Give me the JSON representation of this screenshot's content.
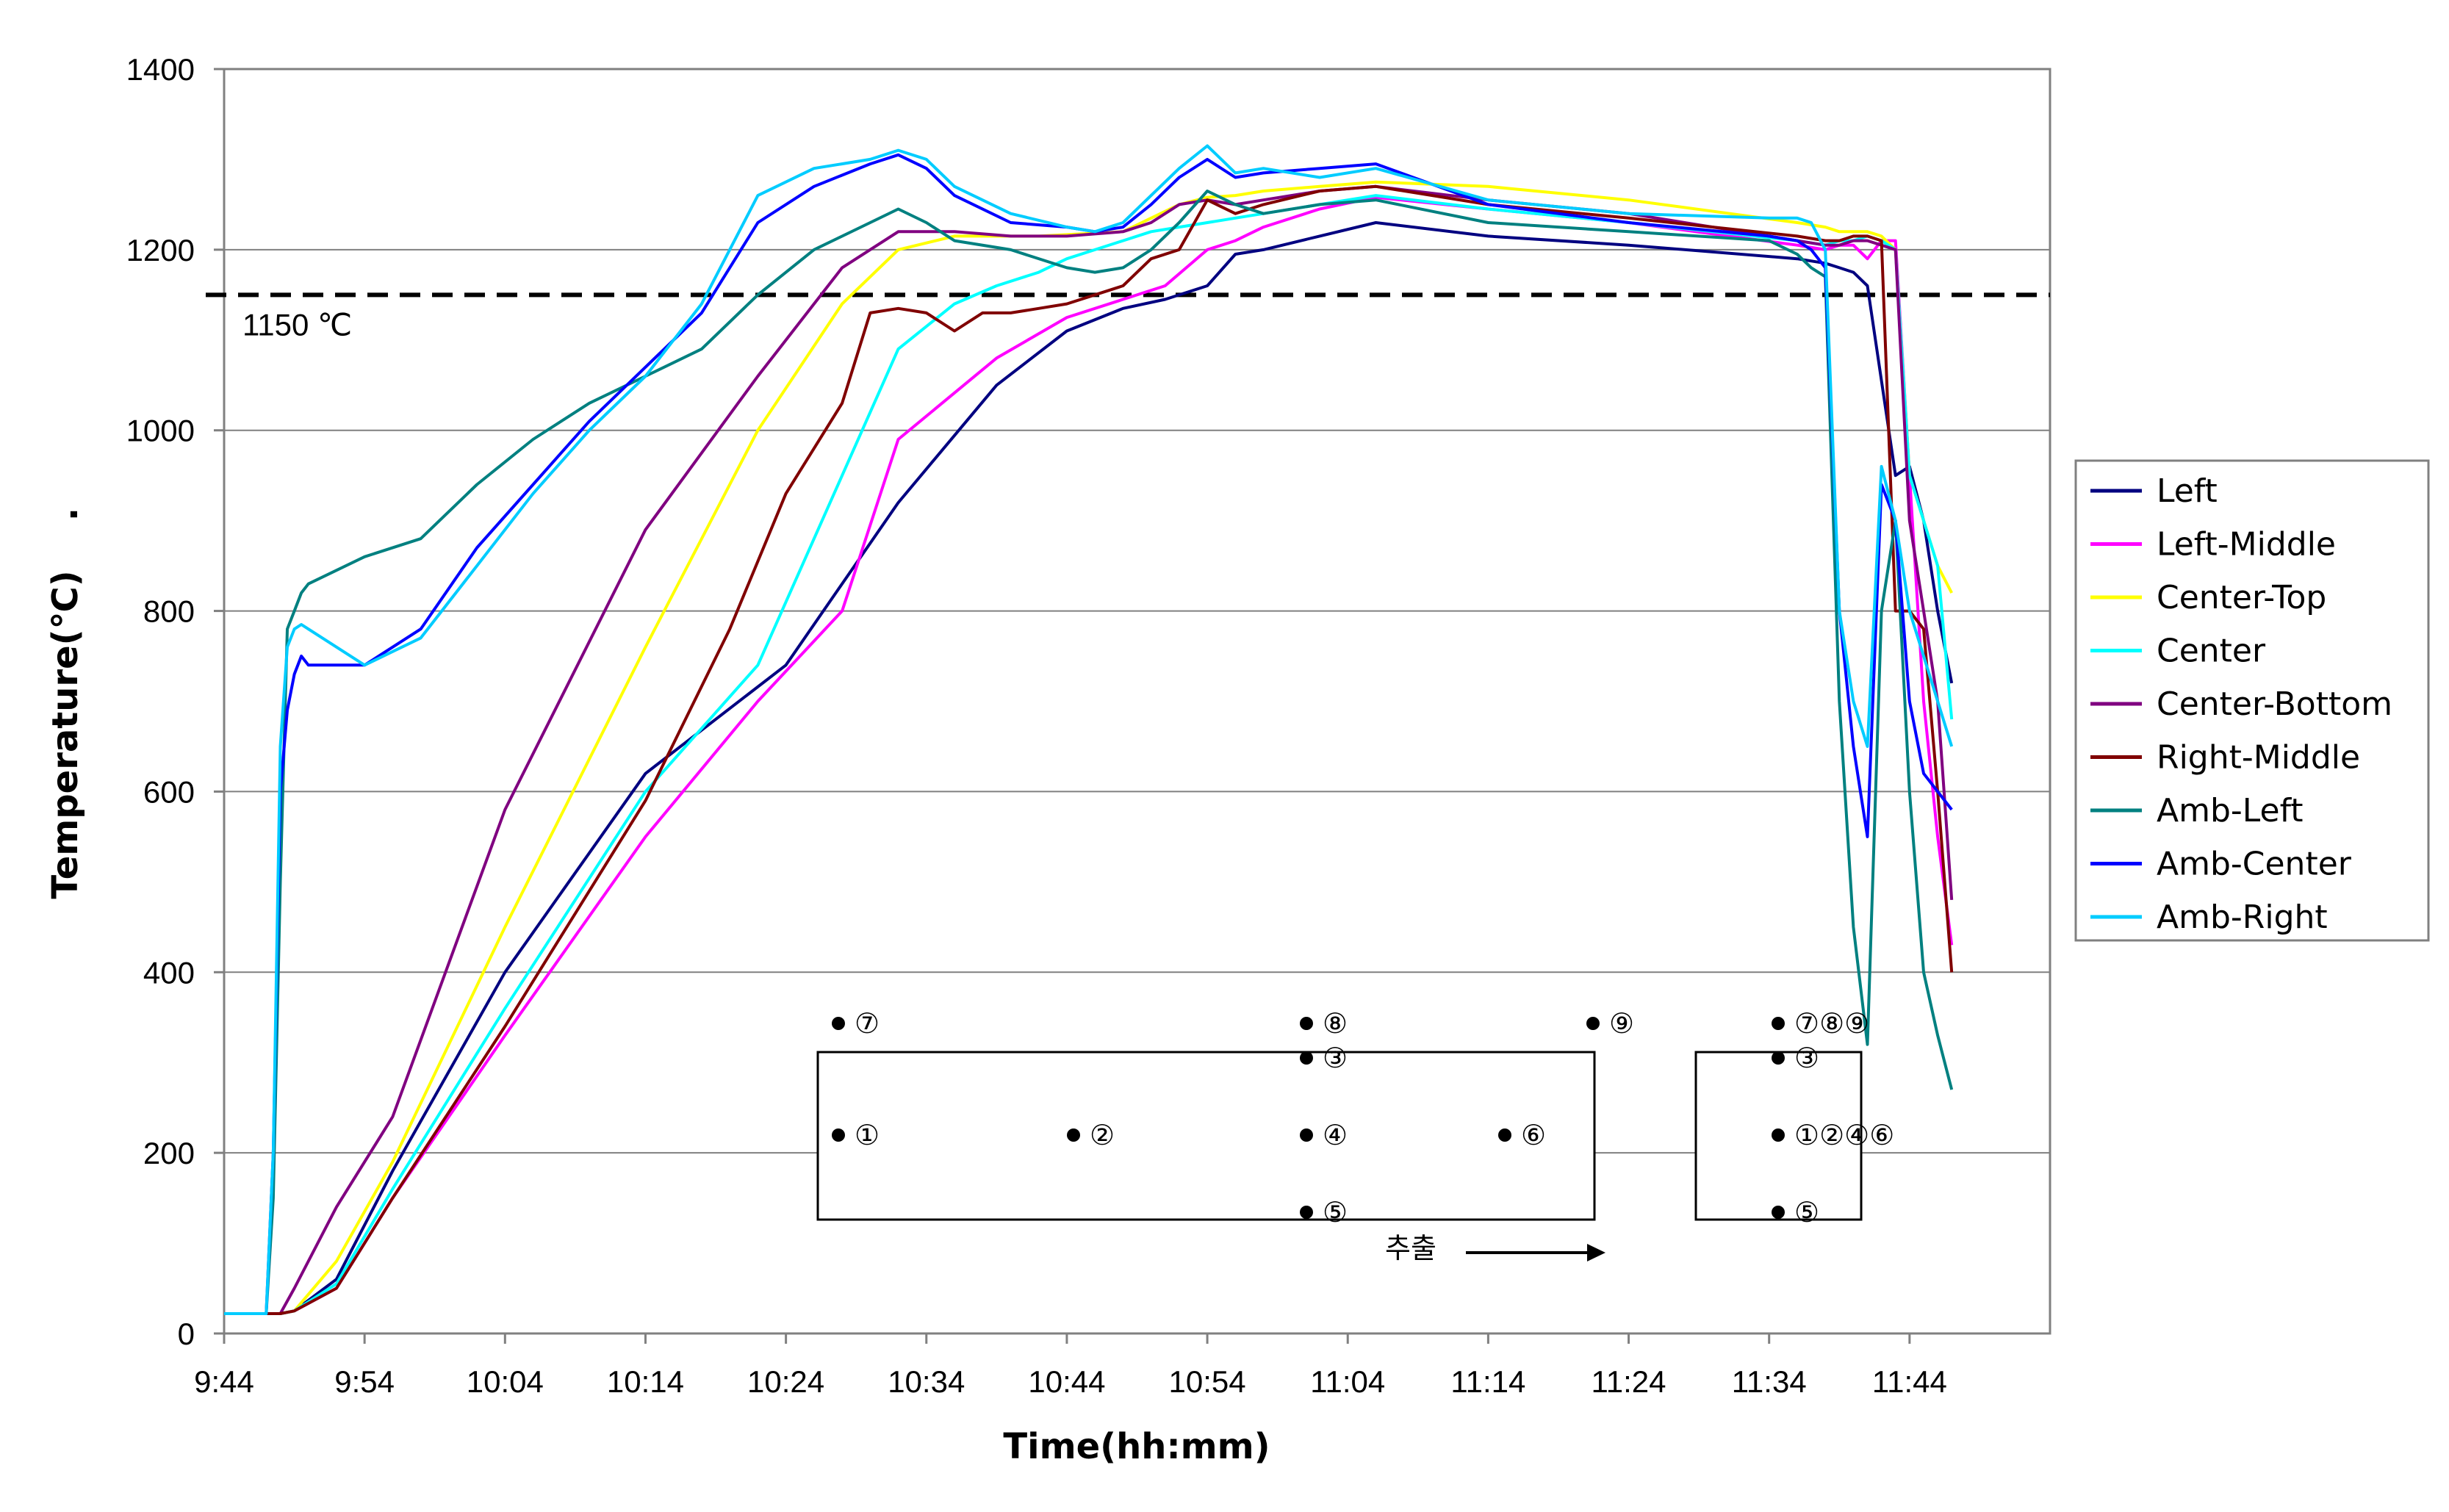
{
  "chart_data": {
    "type": "line",
    "xlabel": "Time(hh:mm)",
    "ylabel": "Temperature(℃)",
    "ylabel_suffix": ".",
    "ylim": [
      0,
      1400
    ],
    "yticks": [
      0,
      200,
      400,
      600,
      800,
      1000,
      1200,
      1400
    ],
    "xlim_minutes": [
      0,
      130
    ],
    "xtick_labels": [
      "9:44",
      "9:54",
      "10:04",
      "10:14",
      "10:24",
      "10:34",
      "10:44",
      "10:54",
      "11:04",
      "11:14",
      "11:24",
      "11:34",
      "11:44"
    ],
    "grid": "horizontal",
    "legend_position": "right",
    "reference_line": {
      "value": 1150,
      "label": "1150 ℃",
      "style": "dashed"
    },
    "series": [
      {
        "name": "Left",
        "color": "#000080",
        "x": [
          0,
          4,
          5,
          8,
          12,
          20,
          30,
          40,
          48,
          55,
          60,
          64,
          67,
          70,
          72,
          74,
          78,
          82,
          90,
          100,
          112,
          114,
          115,
          116,
          117,
          119,
          120,
          121,
          122,
          123
        ],
        "y": [
          22,
          22,
          25,
          60,
          180,
          400,
          620,
          740,
          920,
          1050,
          1110,
          1135,
          1145,
          1160,
          1195,
          1200,
          1215,
          1230,
          1215,
          1205,
          1190,
          1185,
          1180,
          1175,
          1160,
          950,
          960,
          900,
          800,
          720
        ]
      },
      {
        "name": "Left-Middle",
        "color": "#ff00ff",
        "x": [
          0,
          4,
          5,
          8,
          12,
          20,
          30,
          38,
          44,
          48,
          55,
          60,
          64,
          67,
          70,
          72,
          74,
          78,
          82,
          90,
          100,
          112,
          114,
          115,
          116,
          117,
          118,
          119,
          120,
          121,
          122,
          123
        ],
        "y": [
          22,
          22,
          25,
          50,
          150,
          330,
          550,
          700,
          800,
          990,
          1080,
          1125,
          1145,
          1160,
          1200,
          1210,
          1225,
          1245,
          1258,
          1245,
          1230,
          1205,
          1200,
          1205,
          1205,
          1190,
          1210,
          1210,
          950,
          700,
          550,
          430
        ]
      },
      {
        "name": "Center-Top",
        "color": "#ffff00",
        "x": [
          0,
          4,
          5,
          8,
          12,
          20,
          30,
          38,
          44,
          48,
          52,
          58,
          64,
          68,
          70,
          72,
          74,
          78,
          82,
          90,
          100,
          112,
          114,
          115,
          116,
          117,
          118,
          119,
          120,
          121,
          122,
          123
        ],
        "y": [
          22,
          22,
          25,
          80,
          190,
          450,
          760,
          1000,
          1140,
          1200,
          1215,
          1215,
          1220,
          1250,
          1258,
          1260,
          1265,
          1270,
          1275,
          1270,
          1255,
          1230,
          1225,
          1220,
          1220,
          1220,
          1215,
          1200,
          950,
          900,
          850,
          820
        ]
      },
      {
        "name": "Center",
        "color": "#00ffff",
        "x": [
          0,
          4,
          5,
          8,
          12,
          20,
          30,
          38,
          44,
          48,
          52,
          55,
          58,
          60,
          62,
          64,
          66,
          68,
          70,
          72,
          74,
          78,
          82,
          90,
          100,
          112,
          114,
          115,
          116,
          117,
          118,
          119,
          120,
          121,
          122,
          123
        ],
        "y": [
          22,
          22,
          25,
          55,
          160,
          360,
          600,
          740,
          950,
          1090,
          1140,
          1160,
          1175,
          1190,
          1200,
          1210,
          1220,
          1225,
          1230,
          1235,
          1240,
          1250,
          1260,
          1245,
          1230,
          1210,
          1205,
          1210,
          1210,
          1215,
          1210,
          1200,
          950,
          900,
          850,
          680
        ]
      },
      {
        "name": "Center-Bottom",
        "color": "#800080",
        "x": [
          0,
          4,
          5,
          8,
          12,
          20,
          30,
          38,
          44,
          48,
          52,
          56,
          60,
          64,
          66,
          68,
          70,
          72,
          74,
          78,
          82,
          90,
          100,
          112,
          114,
          115,
          116,
          117,
          118,
          119,
          120,
          121,
          122,
          123
        ],
        "y": [
          22,
          22,
          50,
          140,
          240,
          580,
          890,
          1060,
          1180,
          1220,
          1220,
          1215,
          1215,
          1220,
          1230,
          1250,
          1255,
          1250,
          1255,
          1265,
          1270,
          1255,
          1240,
          1210,
          1205,
          1205,
          1210,
          1210,
          1205,
          1200,
          900,
          800,
          700,
          480
        ]
      },
      {
        "name": "Right-Middle",
        "color": "#800000",
        "x": [
          0,
          4,
          5,
          8,
          12,
          20,
          30,
          36,
          40,
          44,
          46,
          48,
          50,
          52,
          54,
          56,
          58,
          60,
          62,
          64,
          66,
          68,
          70,
          72,
          74,
          78,
          82,
          90,
          100,
          112,
          114,
          115,
          116,
          117,
          118,
          119,
          120,
          121,
          122,
          123
        ],
        "y": [
          22,
          22,
          25,
          50,
          150,
          340,
          590,
          780,
          930,
          1030,
          1130,
          1135,
          1130,
          1110,
          1130,
          1130,
          1135,
          1140,
          1150,
          1160,
          1190,
          1200,
          1255,
          1240,
          1250,
          1265,
          1270,
          1250,
          1235,
          1215,
          1210,
          1210,
          1215,
          1215,
          1210,
          800,
          800,
          780,
          600,
          400
        ]
      },
      {
        "name": "Amb-Left",
        "color": "#008080",
        "x": [
          0,
          3,
          3.5,
          4,
          4.5,
          5,
          5.5,
          6,
          10,
          14,
          18,
          22,
          26,
          30,
          34,
          38,
          42,
          46,
          48,
          50,
          52,
          56,
          60,
          62,
          64,
          66,
          68,
          70,
          72,
          74,
          78,
          82,
          90,
          100,
          110,
          112,
          113,
          114,
          115,
          116,
          117,
          118,
          119,
          120,
          121,
          122,
          123
        ],
        "y": [
          22,
          22,
          150,
          500,
          780,
          800,
          820,
          830,
          860,
          880,
          940,
          990,
          1030,
          1060,
          1090,
          1150,
          1200,
          1230,
          1245,
          1230,
          1210,
          1200,
          1180,
          1175,
          1180,
          1200,
          1230,
          1265,
          1250,
          1240,
          1250,
          1255,
          1230,
          1220,
          1210,
          1195,
          1180,
          1170,
          700,
          450,
          320,
          800,
          900,
          600,
          400,
          330,
          270
        ]
      },
      {
        "name": "Amb-Center",
        "color": "#0000ff",
        "x": [
          0,
          3,
          3.5,
          4,
          4.5,
          5,
          5.5,
          6,
          10,
          14,
          18,
          22,
          26,
          30,
          34,
          38,
          42,
          46,
          48,
          50,
          52,
          56,
          60,
          62,
          64,
          66,
          68,
          70,
          72,
          74,
          78,
          82,
          90,
          100,
          110,
          112,
          113,
          114,
          115,
          116,
          117,
          118,
          119,
          120,
          121,
          122,
          123
        ],
        "y": [
          22,
          22,
          200,
          600,
          690,
          730,
          750,
          740,
          740,
          780,
          870,
          940,
          1010,
          1070,
          1130,
          1230,
          1270,
          1295,
          1305,
          1290,
          1260,
          1230,
          1225,
          1220,
          1225,
          1250,
          1280,
          1300,
          1280,
          1285,
          1290,
          1295,
          1250,
          1230,
          1215,
          1210,
          1200,
          1180,
          800,
          650,
          550,
          940,
          900,
          700,
          620,
          600,
          580
        ]
      },
      {
        "name": "Amb-Right",
        "color": "#00ccff",
        "x": [
          0,
          3,
          3.5,
          4,
          4.5,
          5,
          5.5,
          6,
          10,
          14,
          18,
          22,
          26,
          30,
          34,
          38,
          42,
          46,
          48,
          50,
          52,
          56,
          60,
          62,
          64,
          66,
          68,
          70,
          72,
          74,
          78,
          82,
          90,
          100,
          110,
          112,
          113,
          114,
          115,
          116,
          117,
          118,
          119,
          120,
          121,
          122,
          123
        ],
        "y": [
          22,
          22,
          200,
          650,
          760,
          780,
          785,
          780,
          740,
          770,
          850,
          930,
          1000,
          1060,
          1140,
          1260,
          1290,
          1300,
          1310,
          1300,
          1270,
          1240,
          1225,
          1220,
          1230,
          1260,
          1290,
          1315,
          1285,
          1290,
          1280,
          1290,
          1255,
          1240,
          1235,
          1235,
          1230,
          1200,
          800,
          700,
          650,
          960,
          900,
          800,
          750,
          700,
          650
        ]
      }
    ]
  },
  "inset": {
    "long_box_labels": [
      {
        "text": "⑦",
        "region": "top-left"
      },
      {
        "text": "⑧",
        "region": "top-center"
      },
      {
        "text": "⑨",
        "region": "top-right"
      },
      {
        "text": "③",
        "region": "upper-center"
      },
      {
        "text": "①",
        "region": "mid-left"
      },
      {
        "text": "②",
        "region": "mid-left-center"
      },
      {
        "text": "④",
        "region": "mid-center"
      },
      {
        "text": "⑥",
        "region": "mid-right"
      },
      {
        "text": "⑤",
        "region": "bottom-center"
      }
    ],
    "end_box_labels": [
      {
        "text": "⑦⑧⑨",
        "region": "top"
      },
      {
        "text": "③",
        "region": "upper"
      },
      {
        "text": "①②④⑥",
        "region": "middle"
      },
      {
        "text": "⑤",
        "region": "bottom"
      }
    ],
    "arrow_label": "추출"
  }
}
